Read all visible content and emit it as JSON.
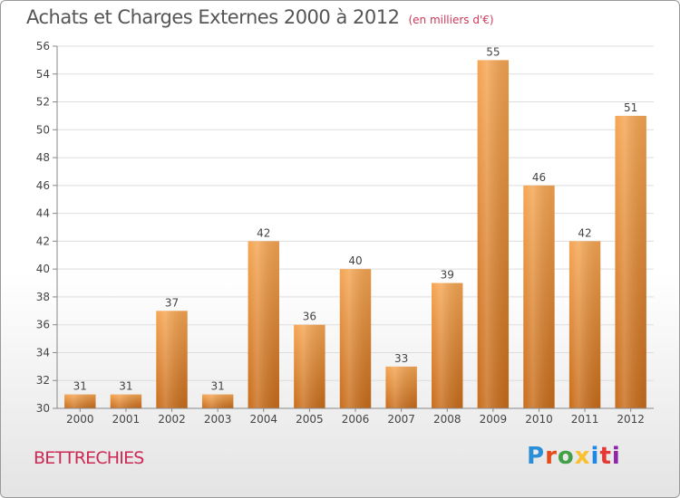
{
  "title": "Achats et Charges Externes 2000 à 2012",
  "unit": "(en milliers d'€)",
  "municipality": "BETTRECHIES",
  "logo": {
    "text": "Proxiti",
    "letters": [
      {
        "ch": "P",
        "color": "#2a8fd6"
      },
      {
        "ch": "r",
        "color": "#e64a19"
      },
      {
        "ch": "o",
        "color": "#43a047"
      },
      {
        "ch": "x",
        "color": "#fbc02d"
      },
      {
        "ch": "i",
        "color": "#1e88e5"
      },
      {
        "ch": "t",
        "color": "#e53935"
      },
      {
        "ch": "i",
        "color": "#8e24aa"
      }
    ]
  },
  "colors": {
    "bar_top": "#f5a552",
    "bar_bottom": "#c86c1a",
    "axis": "#888888",
    "grid": "#dddddd"
  },
  "chart_data": {
    "type": "bar",
    "categories": [
      "2000",
      "2001",
      "2002",
      "2003",
      "2004",
      "2005",
      "2006",
      "2007",
      "2008",
      "2009",
      "2010",
      "2011",
      "2012"
    ],
    "values": [
      31,
      31,
      37,
      31,
      42,
      36,
      40,
      33,
      39,
      55,
      46,
      42,
      51
    ],
    "ylim": [
      30,
      56
    ],
    "yticks": [
      30,
      32,
      34,
      36,
      38,
      40,
      42,
      44,
      46,
      48,
      50,
      52,
      54,
      56
    ],
    "grid": true,
    "data_labels": true
  }
}
